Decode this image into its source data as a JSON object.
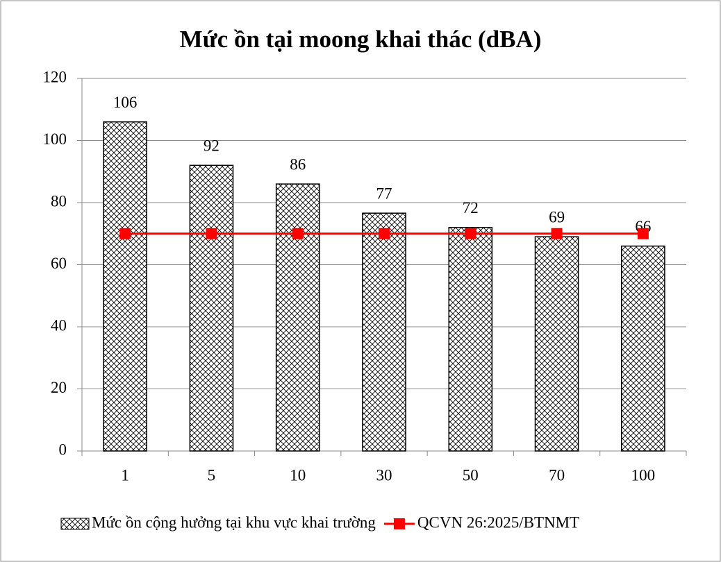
{
  "chart_data": {
    "type": "bar",
    "title": "Mức ồn tại moong khai thác (dBA)",
    "categories": [
      "1",
      "5",
      "10",
      "30",
      "50",
      "70",
      "100"
    ],
    "series": [
      {
        "name": "Mức ồn cộng hưởng tại khu vực khai trường",
        "type": "bar",
        "color": "#000000",
        "values": [
          106,
          92,
          86,
          76.6,
          72,
          69,
          66
        ],
        "value_labels": [
          "106",
          "92",
          "86",
          "77",
          "72",
          "69",
          "66"
        ]
      },
      {
        "name": "QCVN 26:2025/BTNMT",
        "type": "line",
        "color": "#ff0000",
        "values": [
          70,
          70,
          70,
          70,
          70,
          70,
          70
        ]
      }
    ],
    "ylim": [
      0,
      120
    ],
    "yticks": [
      0,
      20,
      40,
      60,
      80,
      100,
      120
    ],
    "grid": true,
    "legend": "bottom"
  }
}
